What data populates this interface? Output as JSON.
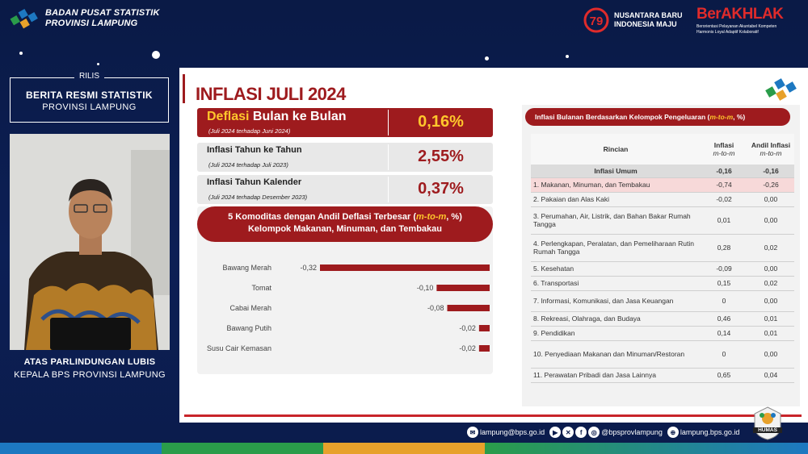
{
  "header": {
    "org_line1": "BADAN PUSAT STATISTIK",
    "org_line2": "PROVINSI LAMPUNG",
    "logo79": "79",
    "campaign_line1": "NUSANTARA BARU",
    "campaign_line2": "INDONESIA MAJU",
    "berakhlak_title": "BerAKHLAK",
    "berakhlak_sub1": "Berorientasi Pelayanan Akuntabel Kompeten",
    "berakhlak_sub2": "Harmonis Loyal Adaptif Kolaboratif"
  },
  "presenter": {
    "rilis_label": "RILIS",
    "rilis_title": "BERITA RESMI STATISTIK",
    "rilis_sub": "PROVINSI LAMPUNG",
    "name": "ATAS PARLINDUNGAN LUBIS",
    "role": "KEPALA BPS PROVINSI LAMPUNG"
  },
  "slide": {
    "title": "INFLASI JULI 2024",
    "stats": [
      {
        "name_accent": "Deflasi",
        "name_rest": " Bulan ke Bulan",
        "period": "(Juli 2024 terhadap Juni 2024)",
        "value": "0,16%"
      },
      {
        "name": "Inflasi Tahun ke Tahun",
        "period": "(Juli 2024 terhadap Juli 2023)",
        "value": "2,55%"
      },
      {
        "name": "Inflasi Tahun Kalender",
        "period": "(Juli 2024 terhadap Desember 2023)",
        "value": "0,37%"
      }
    ],
    "chart_header": {
      "line1_a": "5 Komoditas dengan Andil Deflasi Terbesar  (",
      "line1_b": "m-to-m",
      "line1_c": ", %)",
      "line2": "Kelompok Makanan, Minuman, dan Tembakau"
    },
    "table": {
      "header_a": "Inflasi Bulanan Berdasarkan Kelompok Pengeluaran (",
      "header_b": "m-to-m",
      "header_c": ", %)",
      "col_rincian": "Rincian",
      "col_inflasi": "Inflasi",
      "col_inflasi_sub": "m-to-m",
      "col_andil": "Andil Inflasi",
      "col_andil_sub": "m-to-m",
      "total": {
        "label": "Inflasi Umum",
        "inflasi": "-0,16",
        "andil": "-0,16"
      },
      "rows": [
        {
          "label": "1. Makanan, Minuman, dan Tembakau",
          "inflasi": "-0,74",
          "andil": "-0,26"
        },
        {
          "label": "2. Pakaian dan Alas Kaki",
          "inflasi": "-0,02",
          "andil": "0,00"
        },
        {
          "label": "3. Perumahan, Air, Listrik, dan Bahan Bakar Rumah Tangga",
          "inflasi": "0,01",
          "andil": "0,00"
        },
        {
          "label": "4. Perlengkapan, Peralatan, dan Pemeliharaan Rutin Rumah Tangga",
          "inflasi": "0,28",
          "andil": "0,02"
        },
        {
          "label": "5. Kesehatan",
          "inflasi": "-0,09",
          "andil": "0,00"
        },
        {
          "label": "6. Transportasi",
          "inflasi": "0,15",
          "andil": "0,02"
        },
        {
          "label": "7. Informasi, Komunikasi, dan Jasa Keuangan",
          "inflasi": "0",
          "andil": "0,00"
        },
        {
          "label": "8. Rekreasi, Olahraga, dan Budaya",
          "inflasi": "0,46",
          "andil": "0,01"
        },
        {
          "label": "9. Pendidikan",
          "inflasi": "0,14",
          "andil": "0,01"
        },
        {
          "label": "10. Penyediaan Makanan dan Minuman/Restoran",
          "inflasi": "0",
          "andil": "0,00"
        },
        {
          "label": "11. Perawatan Pribadi dan Jasa Lainnya",
          "inflasi": "0,65",
          "andil": "0,04"
        }
      ]
    }
  },
  "chart_data": {
    "type": "bar",
    "orientation": "horizontal",
    "categories": [
      "Bawang Merah",
      "Tomat",
      "Cabai Merah",
      "Bawang Putih",
      "Susu Cair Kemasan"
    ],
    "values": [
      -0.32,
      -0.1,
      -0.08,
      -0.02,
      -0.02
    ],
    "value_labels": [
      "-0,32",
      "-0,10",
      "-0,08",
      "-0,02",
      "-0,02"
    ],
    "bar_color": "#9e1b1e",
    "xlim": [
      -0.32,
      0
    ]
  },
  "footer": {
    "email": "lampung@bps.go.id",
    "social": "@bpsprovlampung",
    "website": "lampung.bps.go.id",
    "humas": "HUMAS"
  },
  "colors": {
    "brand_red": "#9e1b1e",
    "accent_yellow": "#ffc72c",
    "background_navy": "#0b1c4c"
  }
}
